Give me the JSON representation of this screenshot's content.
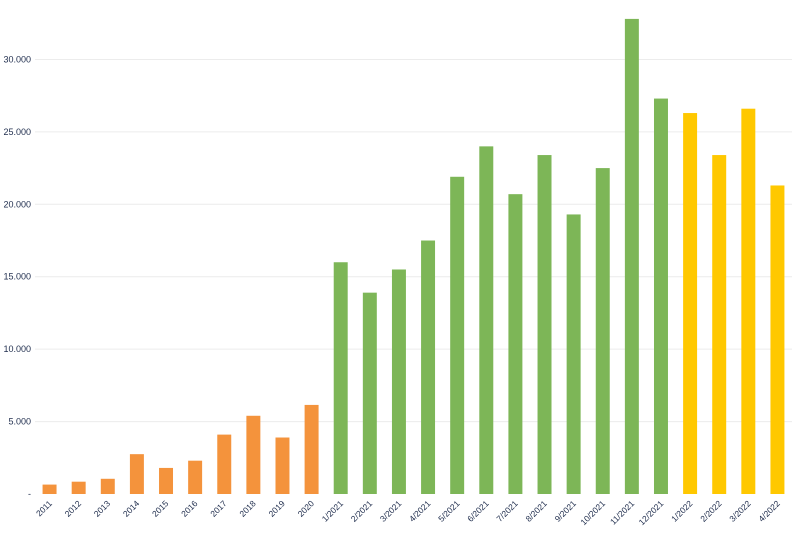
{
  "chart_data": {
    "type": "bar",
    "title": "",
    "xlabel": "",
    "ylabel": "",
    "ylim": [
      0,
      33000
    ],
    "grid": true,
    "legend": "none",
    "y_ticks": [
      {
        "value": 0,
        "label": "-"
      },
      {
        "value": 5000,
        "label": "5.000"
      },
      {
        "value": 10000,
        "label": "10.000"
      },
      {
        "value": 15000,
        "label": "15.000"
      },
      {
        "value": 20000,
        "label": "20.000"
      },
      {
        "value": 25000,
        "label": "25.000"
      },
      {
        "value": 30000,
        "label": "30.000"
      }
    ],
    "categories": [
      "2011",
      "2012",
      "2013",
      "2014",
      "2015",
      "2016",
      "2017",
      "2018",
      "2019",
      "2020",
      "1/2021",
      "2/2021",
      "3/2021",
      "4/2021",
      "5/2021",
      "6/2021",
      "7/2021",
      "8/2021",
      "9/2021",
      "10/2021",
      "11/2021",
      "12/2021",
      "1/2022",
      "2/2022",
      "3/2022",
      "4/2022"
    ],
    "values": [
      650,
      850,
      1050,
      2750,
      1800,
      2300,
      4100,
      5400,
      3900,
      6150,
      16000,
      13900,
      15500,
      17500,
      21900,
      24000,
      20700,
      23400,
      19300,
      22500,
      32800,
      27300,
      26300,
      23400,
      26600,
      21300
    ],
    "bar_colors": [
      "#f4933c",
      "#f4933c",
      "#f4933c",
      "#f4933c",
      "#f4933c",
      "#f4933c",
      "#f4933c",
      "#f4933c",
      "#f4933c",
      "#f4933c",
      "#7db657",
      "#7db657",
      "#7db657",
      "#7db657",
      "#7db657",
      "#7db657",
      "#7db657",
      "#7db657",
      "#7db657",
      "#7db657",
      "#7db657",
      "#7db657",
      "#ffc800",
      "#ffc800",
      "#ffc800",
      "#ffc800"
    ],
    "axis_text_color": "#1f2d4d",
    "gridline_color": "#ececec"
  }
}
